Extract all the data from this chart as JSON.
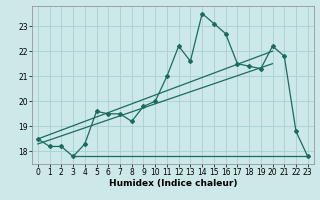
{
  "title": "",
  "xlabel": "Humidex (Indice chaleur)",
  "bg_color": "#cce8e8",
  "line_color": "#1a6b5e",
  "grid_color": "#aad0d0",
  "xlim": [
    -0.5,
    23.5
  ],
  "ylim": [
    17.5,
    23.8
  ],
  "yticks": [
    18,
    19,
    20,
    21,
    22,
    23
  ],
  "xticks": [
    0,
    1,
    2,
    3,
    4,
    5,
    6,
    7,
    8,
    9,
    10,
    11,
    12,
    13,
    14,
    15,
    16,
    17,
    18,
    19,
    20,
    21,
    22,
    23
  ],
  "line1_x": [
    0,
    1,
    2,
    3,
    4,
    5,
    6,
    7,
    8,
    9,
    10,
    11,
    12,
    13,
    14,
    15,
    16,
    17,
    18,
    19,
    20,
    21,
    22,
    23
  ],
  "line1_y": [
    18.5,
    18.2,
    18.2,
    17.8,
    18.3,
    19.6,
    19.5,
    19.5,
    19.2,
    19.8,
    20.0,
    21.0,
    22.2,
    21.6,
    23.5,
    23.1,
    22.7,
    21.5,
    21.4,
    21.3,
    22.2,
    21.8,
    18.8,
    17.8
  ],
  "line2_x": [
    3,
    23
  ],
  "line2_y": [
    17.8,
    17.8
  ],
  "line3_x": [
    0,
    20
  ],
  "line3_y": [
    18.3,
    21.5
  ],
  "line4_x": [
    0,
    20
  ],
  "line4_y": [
    18.5,
    22.0
  ]
}
